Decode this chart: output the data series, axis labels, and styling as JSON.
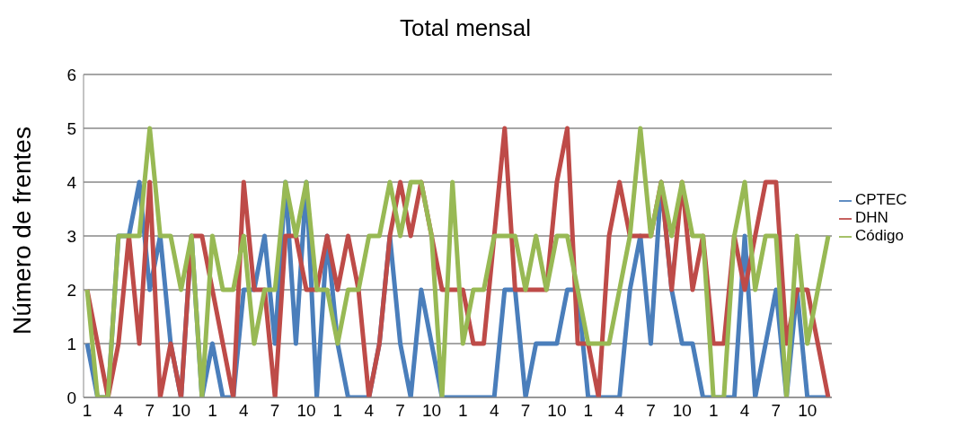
{
  "chart_data": {
    "type": "line",
    "title": "Total mensal",
    "ylabel": "Número de frentes",
    "categories": [
      "1",
      null,
      null,
      "4",
      null,
      null,
      "7",
      null,
      null,
      "10",
      null,
      null,
      "1",
      null,
      null,
      "4",
      null,
      null,
      "7",
      null,
      null,
      "10",
      null,
      null,
      "1",
      null,
      null,
      "4",
      null,
      null,
      "7",
      null,
      null,
      "10",
      null,
      null,
      "1",
      null,
      null,
      "4",
      null,
      null,
      "7",
      null,
      null,
      "10",
      null,
      null,
      "1",
      null,
      null,
      "4",
      null,
      null,
      "7",
      null,
      null,
      "10",
      null,
      null,
      "1",
      null,
      null,
      "4",
      null,
      null,
      "7",
      null,
      null,
      "10",
      null,
      null
    ],
    "series": [
      {
        "name": "CPTEC",
        "color": "#4a7ebb",
        "values": [
          1,
          0,
          0,
          3,
          3,
          4,
          2,
          3,
          1,
          0,
          3,
          0,
          1,
          0,
          0,
          2,
          2,
          3,
          1,
          4,
          1,
          4,
          0,
          3,
          1,
          0,
          0,
          0,
          1,
          3,
          1,
          0,
          2,
          1,
          0,
          0,
          0,
          0,
          0,
          0,
          2,
          2,
          0,
          1,
          1,
          1,
          2,
          2,
          0,
          0,
          0,
          0,
          2,
          3,
          1,
          4,
          2,
          1,
          1,
          0,
          0,
          0,
          0,
          3,
          0,
          1,
          2,
          0,
          2,
          0,
          0,
          0
        ]
      },
      {
        "name": "DHN",
        "color": "#be4b48",
        "values": [
          2,
          1,
          0,
          1,
          3,
          1,
          4,
          0,
          1,
          0,
          3,
          3,
          2,
          1,
          0,
          4,
          2,
          2,
          0,
          3,
          3,
          2,
          2,
          3,
          2,
          3,
          2,
          0,
          1,
          3,
          4,
          3,
          4,
          3,
          2,
          2,
          2,
          1,
          1,
          3,
          5,
          2,
          2,
          2,
          2,
          4,
          5,
          1,
          1,
          0,
          3,
          4,
          3,
          3,
          3,
          4,
          2,
          4,
          2,
          3,
          1,
          1,
          3,
          2,
          3,
          4,
          4,
          1,
          2,
          2,
          1,
          0
        ]
      },
      {
        "name": "Código",
        "color": "#98b954",
        "values": [
          2,
          0,
          0,
          3,
          3,
          3,
          5,
          3,
          3,
          2,
          3,
          0,
          3,
          2,
          2,
          3,
          1,
          2,
          2,
          4,
          3,
          4,
          2,
          2,
          1,
          2,
          2,
          3,
          3,
          4,
          3,
          4,
          4,
          3,
          0,
          4,
          1,
          2,
          2,
          3,
          3,
          3,
          2,
          3,
          2,
          3,
          3,
          2,
          1,
          1,
          1,
          2,
          3,
          5,
          3,
          4,
          3,
          4,
          3,
          3,
          0,
          0,
          3,
          4,
          2,
          3,
          3,
          0,
          3,
          1,
          2,
          3
        ]
      }
    ],
    "ylim": [
      0,
      6
    ],
    "yticks": [
      0,
      1,
      2,
      3,
      4,
      5,
      6
    ],
    "grid": "y",
    "legend": "right",
    "marker": "none",
    "line_style": "solid"
  }
}
